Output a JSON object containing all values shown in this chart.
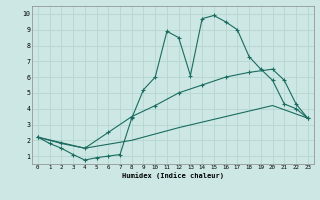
{
  "bg_color": "#cde8e4",
  "grid_color": "#b8d8d4",
  "line_color": "#1a6b60",
  "xlabel": "Humidex (Indice chaleur)",
  "xlim": [
    -0.5,
    23.5
  ],
  "ylim": [
    0.5,
    10.5
  ],
  "xticks": [
    0,
    1,
    2,
    3,
    4,
    5,
    6,
    7,
    8,
    9,
    10,
    11,
    12,
    13,
    14,
    15,
    16,
    17,
    18,
    19,
    20,
    21,
    22,
    23
  ],
  "yticks": [
    1,
    2,
    3,
    4,
    5,
    6,
    7,
    8,
    9,
    10
  ],
  "line1_x": [
    0,
    1,
    2,
    3,
    4,
    5,
    6,
    7,
    8,
    9,
    10,
    11,
    12,
    13,
    14,
    15,
    16,
    17,
    18,
    19,
    20,
    21,
    22,
    23
  ],
  "line1_y": [
    2.2,
    1.8,
    1.5,
    1.1,
    0.75,
    0.9,
    1.0,
    1.1,
    3.4,
    5.2,
    6.0,
    8.9,
    8.5,
    6.1,
    9.7,
    9.9,
    9.5,
    9.0,
    7.3,
    6.5,
    5.8,
    4.3,
    4.0,
    3.4
  ],
  "line2_x": [
    0,
    2,
    4,
    6,
    8,
    10,
    12,
    14,
    16,
    18,
    20,
    21,
    22,
    23
  ],
  "line2_y": [
    2.2,
    1.8,
    1.5,
    2.5,
    3.5,
    4.2,
    5.0,
    5.5,
    6.0,
    6.3,
    6.5,
    5.8,
    4.3,
    3.4
  ],
  "line3_x": [
    0,
    4,
    8,
    12,
    16,
    20,
    23
  ],
  "line3_y": [
    2.2,
    1.5,
    2.0,
    2.8,
    3.5,
    4.2,
    3.4
  ]
}
